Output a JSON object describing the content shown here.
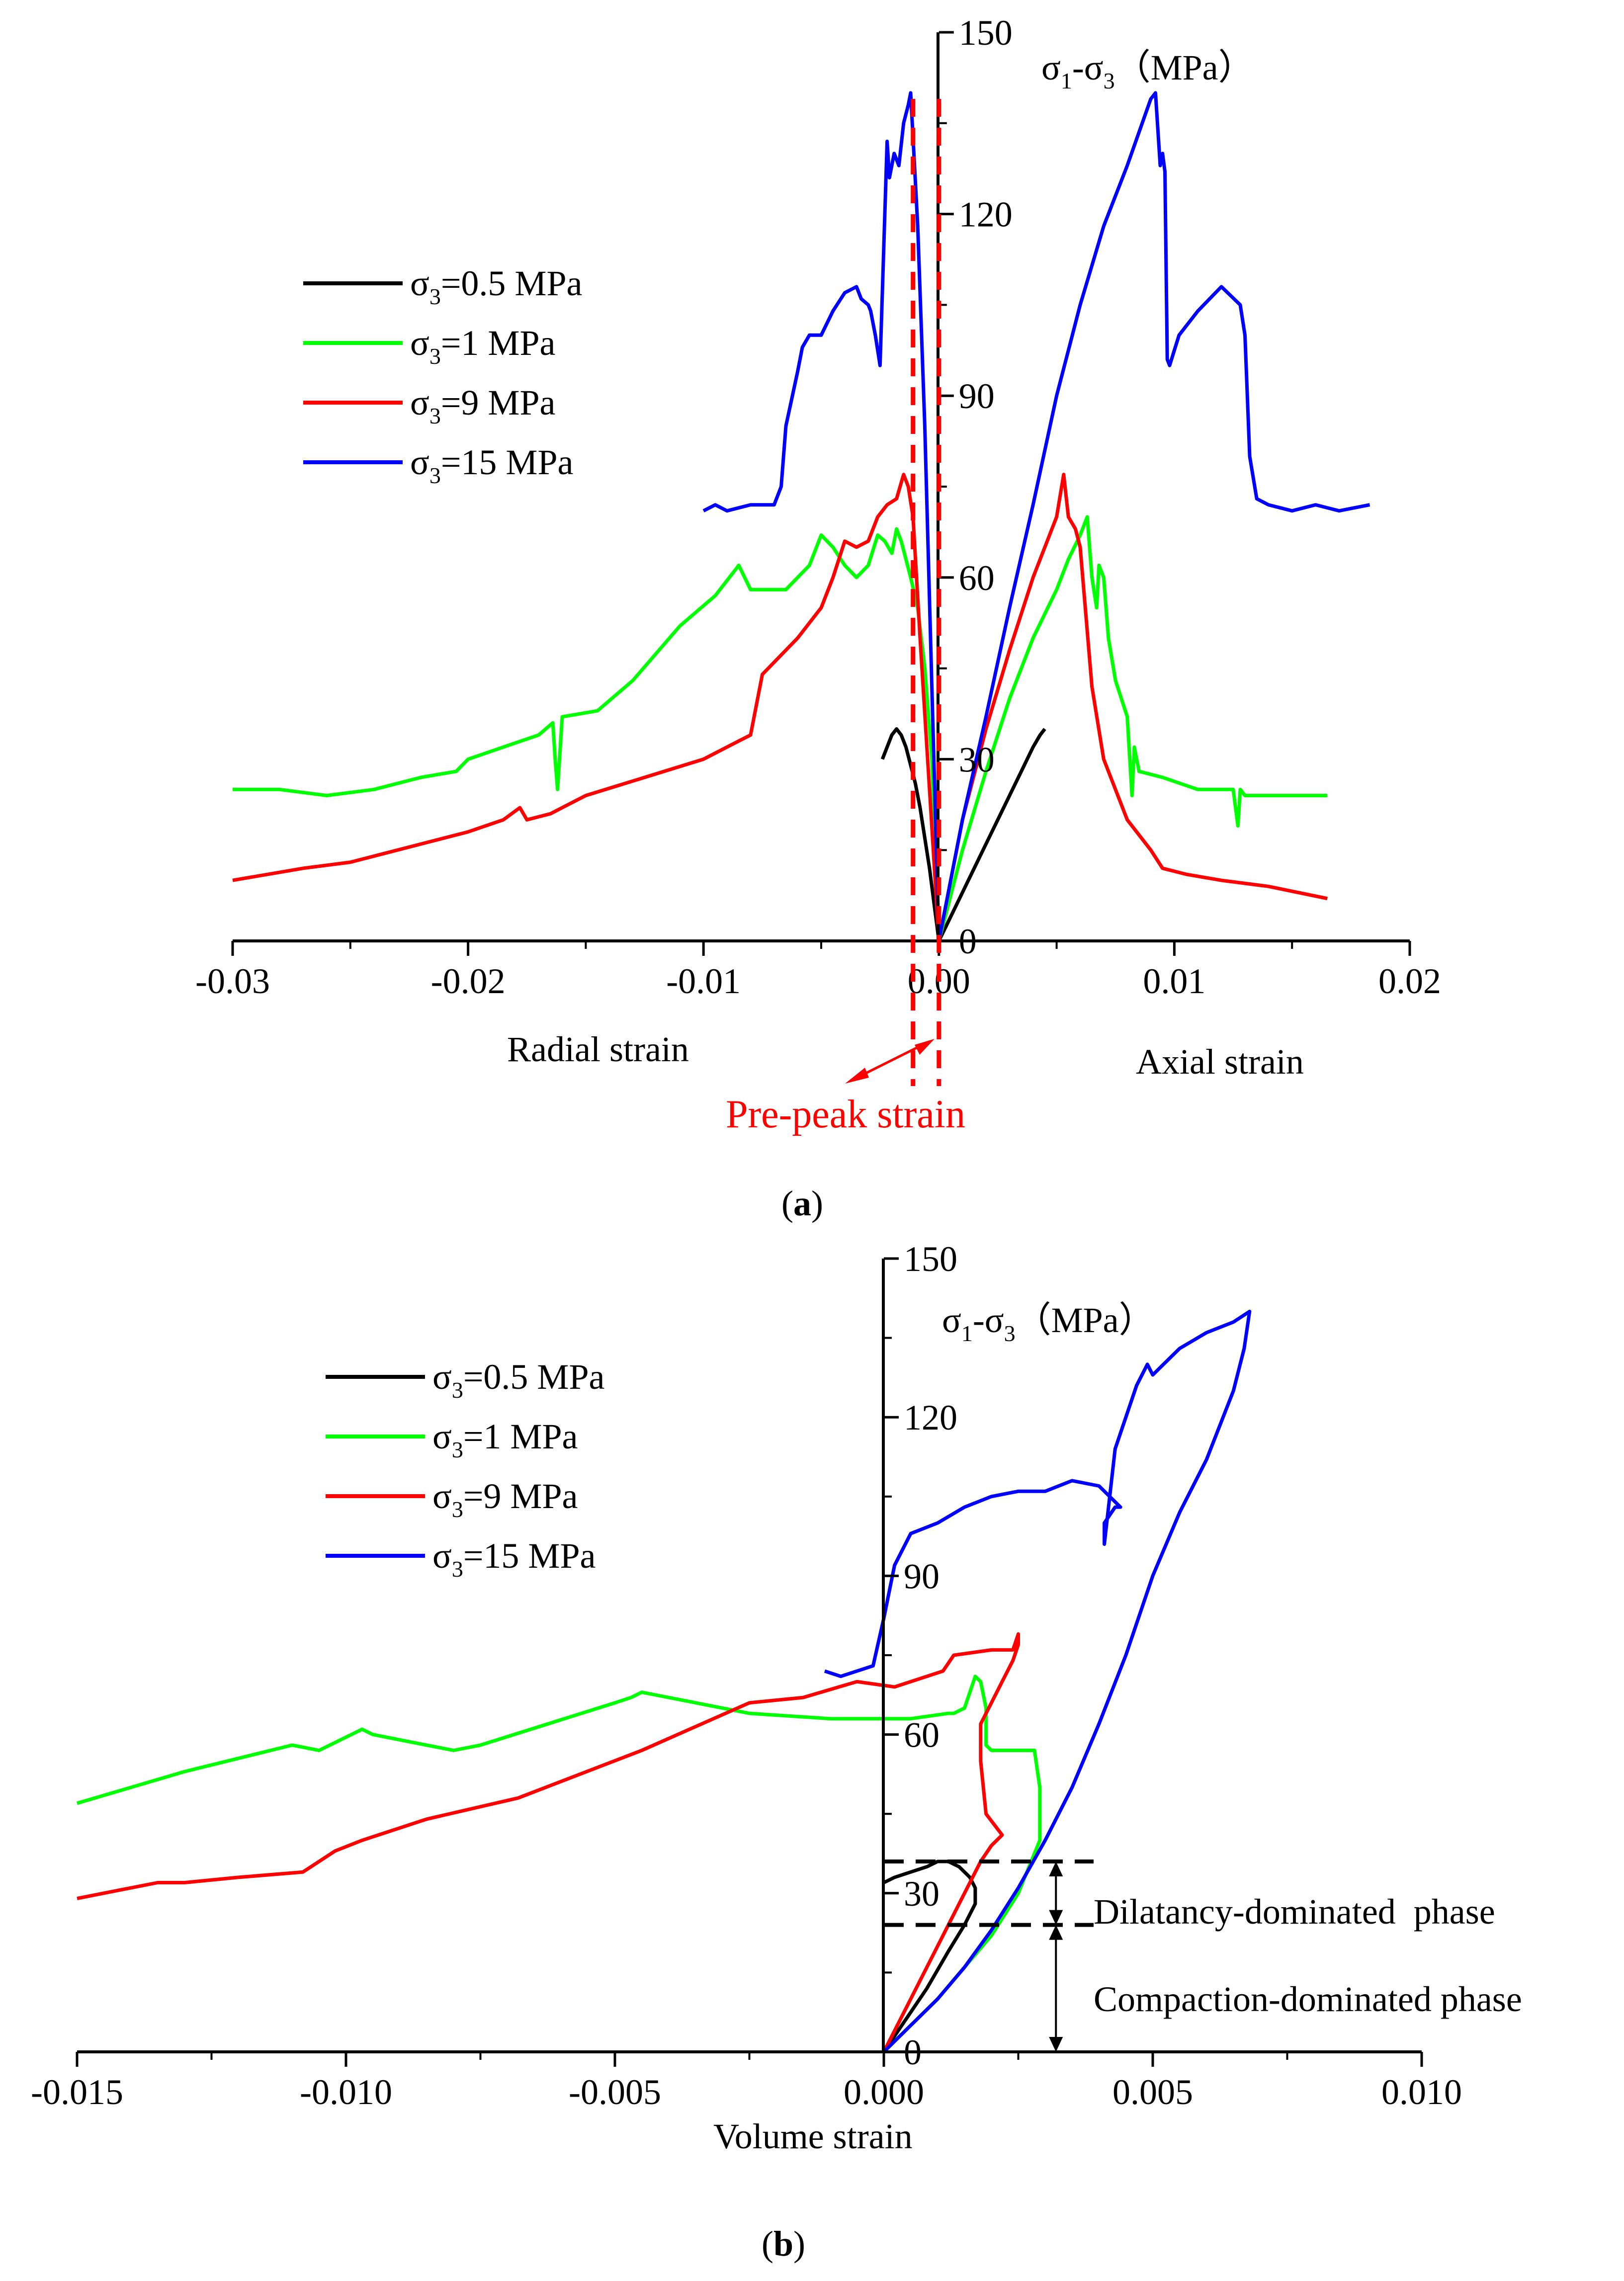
{
  "colors": {
    "s05": "#000000",
    "s1": "#00ff00",
    "s9": "#ff0000",
    "s15": "#0000ff",
    "annotation": "#ff0000"
  },
  "series_names": [
    "σ3=0.5 MPa",
    "σ3=1 MPa",
    "σ3=9 MPa",
    "σ3=15 MPa"
  ],
  "chart_data": [
    {
      "id": "a",
      "type": "line",
      "caption": "(a)",
      "title": "",
      "xlabel_left": "Radial strain",
      "xlabel_right": "Axial strain",
      "ylabel": "σ1-σ3（MPa）",
      "xlim": [
        -0.03,
        0.02
      ],
      "ylim": [
        0,
        150
      ],
      "xticks": [
        "-0.03",
        "-0.02",
        "-0.01",
        "0.00",
        "0.01",
        "0.02"
      ],
      "yticks": [
        "0",
        "30",
        "60",
        "90",
        "120",
        "150"
      ],
      "legend": [
        {
          "sigma": "σ",
          "sub": "3",
          "rest": "=0.5 MPa",
          "color": "#000000"
        },
        {
          "sigma": "σ",
          "sub": "3",
          "rest": "=1 MPa",
          "color": "#00ff00"
        },
        {
          "sigma": "σ",
          "sub": "3",
          "rest": "=9 MPa",
          "color": "#ff0000"
        },
        {
          "sigma": "σ",
          "sub": "3",
          "rest": "=15 MPa",
          "color": "#0000ff"
        }
      ],
      "annotation": {
        "text": "Pre-peak strain",
        "x1": -0.0011,
        "x2": 0.0
      },
      "series": [
        {
          "name": "σ3=0.5 MPa",
          "color": "#000000",
          "branches": [
            {
              "x": [
                0,
                -0.0002,
                -0.0004,
                -0.0006,
                -0.0008,
                -0.001,
                -0.0012,
                -0.0014,
                -0.0016,
                -0.0018,
                -0.002,
                -0.0022,
                -0.0024
              ],
              "y": [
                0,
                6,
                12,
                17,
                22,
                26,
                29,
                32,
                34,
                35,
                34,
                32,
                30
              ]
            },
            {
              "x": [
                0,
                0.0005,
                0.001,
                0.0015,
                0.002,
                0.0025,
                0.003,
                0.0035,
                0.004,
                0.0043,
                0.0045
              ],
              "y": [
                0,
                4,
                8,
                12,
                16,
                20,
                24,
                28,
                32,
                34,
                35
              ]
            }
          ]
        },
        {
          "name": "σ3=1 MPa",
          "color": "#00ff00",
          "branches": [
            {
              "x": [
                0,
                -0.0003,
                -0.0006,
                -0.0009,
                -0.0012,
                -0.0014,
                -0.0016,
                -0.0018,
                -0.002,
                -0.0023,
                -0.0026,
                -0.003,
                -0.0035,
                -0.004,
                -0.0045,
                -0.005,
                -0.0055,
                -0.0065,
                -0.008,
                -0.0085,
                -0.0095,
                -0.011,
                -0.013,
                -0.0145,
                -0.016,
                -0.0162,
                -0.0163,
                -0.0164,
                -0.017,
                -0.0185,
                -0.02,
                -0.0205,
                -0.022,
                -0.024,
                -0.026,
                -0.028,
                -0.03
              ],
              "y": [
                0,
                30,
                45,
                55,
                60,
                63,
                66,
                68,
                64,
                66,
                67,
                62,
                60,
                62,
                65,
                67,
                62,
                58,
                58,
                62,
                57,
                52,
                43,
                38,
                37,
                25,
                30,
                36,
                34,
                32,
                30,
                28,
                27,
                25,
                24,
                25,
                25
              ]
            },
            {
              "x": [
                0,
                0.001,
                0.002,
                0.003,
                0.004,
                0.005,
                0.0055,
                0.006,
                0.0063,
                0.0065,
                0.0067,
                0.0068,
                0.007,
                0.0072,
                0.0075,
                0.008,
                0.0082,
                0.0083,
                0.0085,
                0.0095,
                0.011,
                0.0125,
                0.0127,
                0.0128,
                0.013,
                0.0145,
                0.0165
              ],
              "y": [
                0,
                15,
                28,
                40,
                50,
                58,
                63,
                67,
                70,
                60,
                55,
                62,
                60,
                50,
                43,
                37,
                24,
                32,
                28,
                27,
                25,
                25,
                19,
                25,
                24,
                24,
                24
              ]
            }
          ]
        },
        {
          "name": "σ3=9 MPa",
          "color": "#ff0000",
          "branches": [
            {
              "x": [
                0,
                -0.0004,
                -0.0008,
                -0.0011,
                -0.0013,
                -0.0015,
                -0.0018,
                -0.0022,
                -0.0026,
                -0.003,
                -0.0035,
                -0.004,
                -0.0045,
                -0.005,
                -0.006,
                -0.0075,
                -0.008,
                -0.0085,
                -0.01,
                -0.0125,
                -0.015,
                -0.0165,
                -0.0175,
                -0.0178,
                -0.0185,
                -0.02,
                -0.022,
                -0.025,
                -0.027,
                -0.03
              ],
              "y": [
                0,
                25,
                50,
                70,
                75,
                77,
                73,
                72,
                70,
                66,
                65,
                66,
                60,
                55,
                50,
                44,
                34,
                33,
                30,
                27,
                24,
                21,
                20,
                22,
                20,
                18,
                16,
                13,
                12,
                10
              ]
            },
            {
              "x": [
                0,
                0.001,
                0.002,
                0.003,
                0.004,
                0.0045,
                0.005,
                0.0053,
                0.0055,
                0.0058,
                0.006,
                0.0065,
                0.007,
                0.008,
                0.009,
                0.0095,
                0.0105,
                0.012,
                0.014,
                0.0165
              ],
              "y": [
                0,
                20,
                35,
                48,
                60,
                65,
                70,
                77,
                70,
                68,
                65,
                42,
                30,
                20,
                15,
                12,
                11,
                10,
                9,
                7
              ]
            }
          ]
        },
        {
          "name": "σ3=15 MPa",
          "color": "#0000ff",
          "branches": [
            {
              "x": [
                0,
                -0.0003,
                -0.0006,
                -0.0009,
                -0.0012,
                -0.0013,
                -0.0015,
                -0.0017,
                -0.0019,
                -0.0021,
                -0.0022,
                -0.0025,
                -0.0027,
                -0.0029,
                -0.003,
                -0.0033,
                -0.0035,
                -0.004,
                -0.0045,
                -0.005,
                -0.0055,
                -0.0058,
                -0.006,
                -0.0065,
                -0.0067,
                -0.007,
                -0.008,
                -0.009,
                -0.0095,
                -0.01
              ],
              "y": [
                0,
                42,
                85,
                118,
                140,
                138,
                135,
                128,
                130,
                126,
                132,
                95,
                100,
                104,
                105,
                106,
                108,
                107,
                104,
                100,
                100,
                98,
                94,
                85,
                75,
                72,
                72,
                71,
                72,
                71
              ]
            },
            {
              "x": [
                0,
                0.001,
                0.002,
                0.003,
                0.004,
                0.005,
                0.006,
                0.007,
                0.008,
                0.009,
                0.0092,
                0.0094,
                0.0095,
                0.0096,
                0.0097,
                0.0098,
                0.0102,
                0.011,
                0.012,
                0.0128,
                0.013,
                0.0132,
                0.0135,
                0.014,
                0.015,
                0.016,
                0.017,
                0.0183
              ],
              "y": [
                0,
                20,
                37,
                55,
                72,
                90,
                105,
                118,
                128,
                139,
                140,
                128,
                130,
                127,
                96,
                95,
                100,
                104,
                108,
                105,
                100,
                80,
                73,
                72,
                71,
                72,
                71,
                72
              ]
            }
          ]
        }
      ]
    },
    {
      "id": "b",
      "type": "line",
      "caption": "(b)",
      "title": "",
      "xlabel": "Volume strain",
      "ylabel": "σ1-σ3（MPa）",
      "xlim": [
        -0.015,
        0.01
      ],
      "ylim": [
        0,
        150
      ],
      "xticks": [
        "-0.015",
        "-0.010",
        "-0.005",
        "0.000",
        "0.005",
        "0.010"
      ],
      "yticks": [
        "0",
        "30",
        "60",
        "90",
        "120",
        "150"
      ],
      "legend": [
        {
          "sigma": "σ",
          "sub": "3",
          "rest": "=0.5 MPa",
          "color": "#000000"
        },
        {
          "sigma": "σ",
          "sub": "3",
          "rest": "=1 MPa",
          "color": "#00ff00"
        },
        {
          "sigma": "σ",
          "sub": "3",
          "rest": "=9 MPa",
          "color": "#ff0000"
        },
        {
          "sigma": "σ",
          "sub": "3",
          "rest": "=15 MPa",
          "color": "#0000ff"
        }
      ],
      "phases": {
        "upper_label": "Dilatancy-dominated  phase",
        "lower_label": "Compaction-dominated phase",
        "upper_y": 36,
        "lower_y": 24
      },
      "series": [
        {
          "name": "σ3=0.5 MPa",
          "color": "#000000",
          "x": [
            0,
            0.0004,
            0.0008,
            0.0012,
            0.0015,
            0.0017,
            0.0017,
            0.0016,
            0.0014,
            0.0012,
            0.001,
            0.0008,
            0.0005,
            0.0002,
            0
          ],
          "y": [
            0,
            6,
            12,
            19,
            24,
            28,
            31,
            33,
            35,
            36,
            36,
            35,
            34,
            33,
            32
          ]
        },
        {
          "name": "σ3=1 MPa",
          "color": "#00ff00",
          "x": [
            0,
            0.0005,
            0.001,
            0.0015,
            0.002,
            0.0025,
            0.0029,
            0.0029,
            0.0028,
            0.0025,
            0.002,
            0.0019,
            0.0019,
            0.0018,
            0.0017,
            0.0015,
            0.0013,
            0.0012,
            0.0005,
            -0.001,
            -0.0025,
            -0.0045,
            -0.0047,
            -0.005,
            -0.0075,
            -0.008,
            -0.0085,
            -0.0095,
            -0.0097,
            -0.0105,
            -0.011,
            -0.013,
            -0.015
          ],
          "y": [
            0,
            5,
            10,
            16,
            22,
            30,
            40,
            50,
            57,
            57,
            57,
            58,
            65,
            70,
            71,
            65,
            64,
            64,
            63,
            63,
            64,
            68,
            67,
            66,
            58,
            57,
            58,
            60,
            61,
            57,
            58,
            53,
            47
          ]
        },
        {
          "name": "σ3=9 MPa",
          "color": "#ff0000",
          "x": [
            0,
            0.0005,
            0.001,
            0.0015,
            0.0018,
            0.002,
            0.0021,
            0.0022,
            0.0019,
            0.0018,
            0.0018,
            0.002,
            0.0022,
            0.0024,
            0.0025,
            0.0025,
            0.0024,
            0.002,
            0.0013,
            0.0011,
            0.0008,
            0.0005,
            0.0002,
            -0.0005,
            -0.0015,
            -0.0025,
            -0.0045,
            -0.0068,
            -0.0085,
            -0.0097,
            -0.0102,
            -0.0108,
            -0.012,
            -0.013,
            -0.0135,
            -0.015
          ],
          "y": [
            0,
            10,
            20,
            30,
            36,
            39,
            40,
            41,
            45,
            55,
            62,
            66,
            70,
            74,
            77,
            79,
            76,
            76,
            75,
            72,
            71,
            70,
            69,
            70,
            67,
            66,
            57,
            48,
            44,
            40,
            38,
            34,
            33,
            32,
            32,
            29
          ]
        },
        {
          "name": "σ3=15 MPa",
          "color": "#0000ff",
          "x": [
            0,
            0.0005,
            0.001,
            0.0015,
            0.002,
            0.0025,
            0.003,
            0.0035,
            0.004,
            0.0045,
            0.005,
            0.0055,
            0.006,
            0.0065,
            0.0067,
            0.0068,
            0.0065,
            0.006,
            0.0055,
            0.0052,
            0.005,
            0.0049,
            0.0047,
            0.0045,
            0.0043,
            0.0041,
            0.0041,
            0.0043,
            0.0044,
            0.004,
            0.0035,
            0.003,
            0.0025,
            0.002,
            0.0015,
            0.001,
            0.0005,
            0.0002,
            0,
            -0.0002,
            -0.0005,
            -0.0008,
            -0.0011
          ],
          "y": [
            0,
            5,
            10,
            16,
            23,
            31,
            40,
            50,
            62,
            75,
            90,
            102,
            112,
            125,
            133,
            140,
            138,
            136,
            133,
            130,
            128,
            130,
            126,
            120,
            114,
            96,
            100,
            103,
            103,
            107,
            108,
            106,
            106,
            105,
            103,
            100,
            98,
            92,
            82,
            73,
            72,
            71,
            72
          ]
        }
      ]
    }
  ]
}
